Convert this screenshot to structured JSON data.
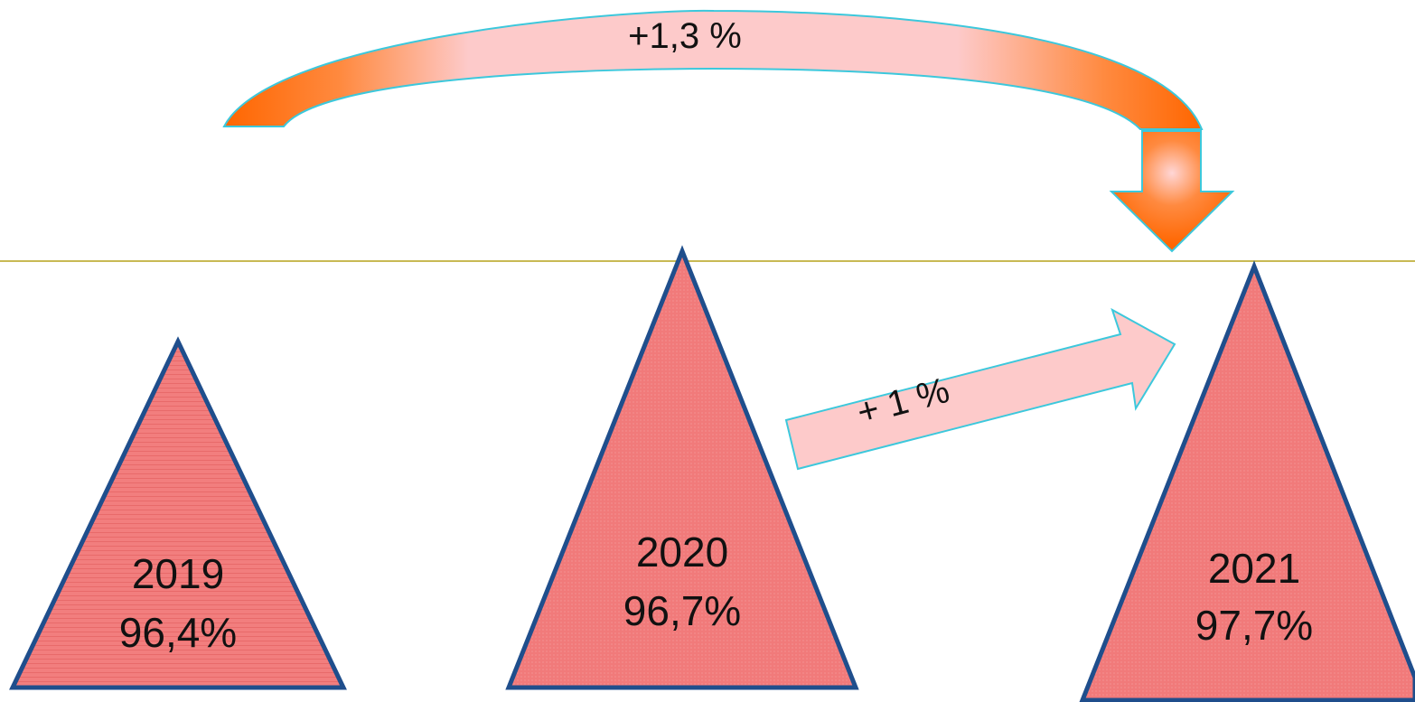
{
  "triangles": [
    {
      "year": "2019",
      "value_text": "96,4%",
      "value": 96.4
    },
    {
      "year": "2020",
      "value_text": "96,7%",
      "value": 96.7
    },
    {
      "year": "2021",
      "value_text": "97,7%",
      "value": 97.7
    }
  ],
  "arrows": {
    "curved": {
      "label": "+1,3 %"
    },
    "straight": {
      "label": "+ 1 %"
    }
  },
  "colors": {
    "triangle_fill": "#f07878",
    "triangle_stroke": "#1f4e8c",
    "arrow_orange": "#ff6600",
    "arrow_pink": "#fdcaca",
    "arrow_stroke": "#3cc8dc",
    "divider": "#b5a21c"
  }
}
